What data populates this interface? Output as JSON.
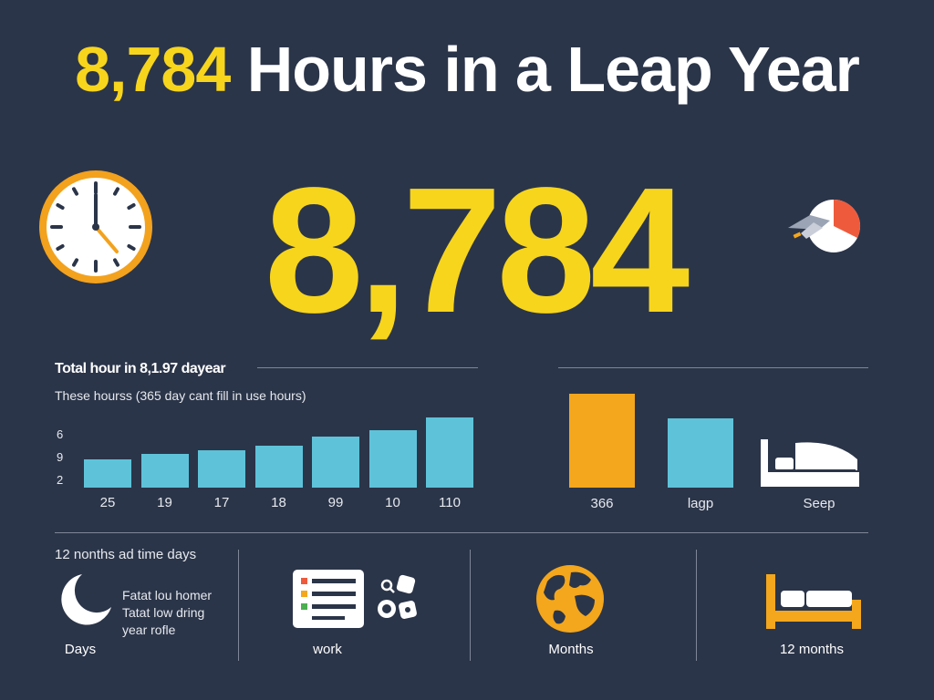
{
  "header": {
    "title_highlight": "8,784",
    "title_rest": "Hours in a Leap Year"
  },
  "hero": {
    "number": "8,784"
  },
  "icons": {
    "clock": "clock-icon",
    "pie": "pie-chart-icon",
    "bed": "bed-icon",
    "moon": "moon-icon",
    "document": "document-list-icon",
    "globe": "globe-icon"
  },
  "colors": {
    "background": "#2b3549",
    "accent_yellow": "#f7d51c",
    "bar_blue": "#5ec3d9",
    "bar_orange": "#f4a71c",
    "pie_red": "#ee5b3c"
  },
  "section": {
    "title": "Total hour in 8,1.97 dayear",
    "subtitle": "These hourss (365 day cant fill in use hours)"
  },
  "chart_data": [
    {
      "type": "bar",
      "y_tick_labels": [
        "6",
        "9",
        "2"
      ],
      "categories": [
        "25",
        "19",
        "17",
        "18",
        "99",
        "10",
        "110"
      ],
      "values": [
        33,
        39,
        43,
        48,
        59,
        66,
        81
      ],
      "ylim": [
        0,
        100
      ],
      "color": "#5ec3d9"
    },
    {
      "type": "bar",
      "categories": [
        "366",
        "lagp",
        "Seep"
      ],
      "values": [
        98,
        72,
        null
      ],
      "colors": [
        "#f4a71c",
        "#5ec3d9"
      ],
      "ylim": [
        0,
        100
      ]
    }
  ],
  "bottom": {
    "heading": "12 nonths ad time days",
    "moon_lines": [
      "Fatat lou homer",
      "Tatat low dring",
      "year rofle"
    ],
    "labels": [
      "Days",
      "work",
      "Months",
      "12 months"
    ]
  }
}
